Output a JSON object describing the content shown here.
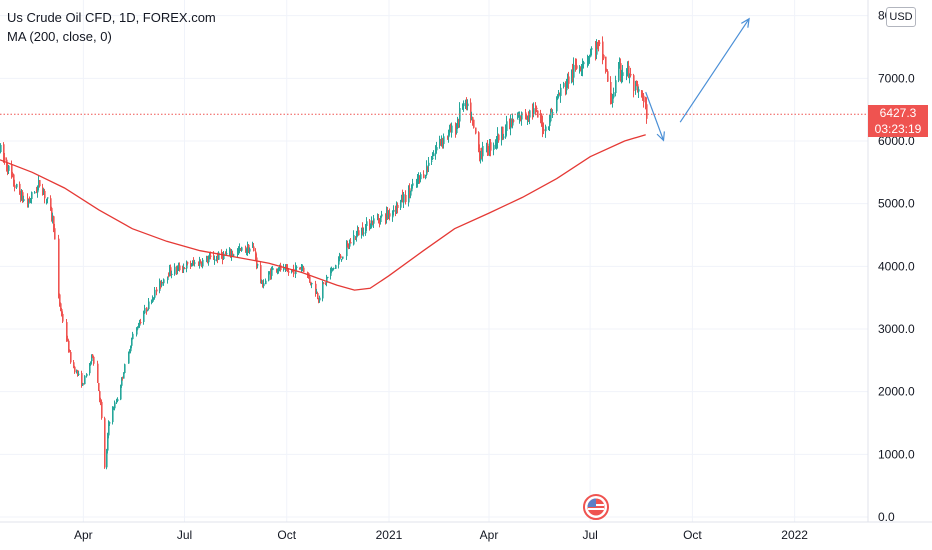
{
  "legend": {
    "symbol": "Us Crude Oil CFD, 1D, FOREX.com",
    "indicator": "MA (200, close, 0)"
  },
  "currency": "USD",
  "last_price": {
    "value": "6427.3",
    "countdown": "03:23:19"
  },
  "colors": {
    "up": "#26a69a",
    "down": "#ef5350",
    "ma": "#e53935",
    "arrow": "#4a8fd6",
    "grid": "#f0f3fa",
    "axis_text": "#131722"
  },
  "chart_data": {
    "type": "candlestick",
    "title": "Us Crude Oil CFD, 1D, FOREX.com",
    "ylim": [
      0,
      8250
    ],
    "y_ticks": [
      0,
      1000,
      2000,
      3000,
      4000,
      5000,
      6000,
      7000,
      8000
    ],
    "y_tick_labels": [
      "0.0",
      "1000.0",
      "2000.0",
      "3000.0",
      "4000.0",
      "5000.0",
      "6000.0",
      "7000.0",
      "8000.0"
    ],
    "x_range": [
      "2020-01-17",
      "2022-03-08"
    ],
    "x_ticks": [
      {
        "date": "2020-04-01",
        "label": "Apr"
      },
      {
        "date": "2020-07-01",
        "label": "Jul"
      },
      {
        "date": "2020-10-01",
        "label": "Oct"
      },
      {
        "date": "2021-01-01",
        "label": "2021"
      },
      {
        "date": "2021-04-01",
        "label": "Apr"
      },
      {
        "date": "2021-07-01",
        "label": "Jul"
      },
      {
        "date": "2021-10-01",
        "label": "Oct"
      },
      {
        "date": "2022-01-01",
        "label": "2022"
      }
    ],
    "price_path": [
      [
        "2020-01-17",
        5850
      ],
      [
        "2020-02-01",
        5200
      ],
      [
        "2020-02-10",
        5000
      ],
      [
        "2020-02-22",
        5350
      ],
      [
        "2020-03-05",
        4700
      ],
      [
        "2020-03-09",
        3500
      ],
      [
        "2020-03-20",
        2500
      ],
      [
        "2020-03-31",
        2100
      ],
      [
        "2020-04-09",
        2600
      ],
      [
        "2020-04-16",
        1800
      ],
      [
        "2020-04-20",
        800
      ],
      [
        "2020-04-23",
        1500
      ],
      [
        "2020-05-01",
        1900
      ],
      [
        "2020-05-15",
        2900
      ],
      [
        "2020-06-01",
        3500
      ],
      [
        "2020-06-15",
        3900
      ],
      [
        "2020-07-01",
        4000
      ],
      [
        "2020-07-20",
        4100
      ],
      [
        "2020-08-10",
        4200
      ],
      [
        "2020-08-31",
        4300
      ],
      [
        "2020-09-08",
        3700
      ],
      [
        "2020-09-20",
        4000
      ],
      [
        "2020-10-01",
        3900
      ],
      [
        "2020-10-15",
        4000
      ],
      [
        "2020-10-29",
        3500
      ],
      [
        "2020-11-05",
        3800
      ],
      [
        "2020-11-20",
        4200
      ],
      [
        "2020-12-01",
        4500
      ],
      [
        "2020-12-15",
        4700
      ],
      [
        "2021-01-01",
        4850
      ],
      [
        "2021-01-20",
        5200
      ],
      [
        "2021-02-01",
        5500
      ],
      [
        "2021-02-15",
        6000
      ],
      [
        "2021-03-01",
        6200
      ],
      [
        "2021-03-08",
        6600
      ],
      [
        "2021-03-15",
        6400
      ],
      [
        "2021-03-23",
        5800
      ],
      [
        "2021-04-01",
        5900
      ],
      [
        "2021-04-15",
        6200
      ],
      [
        "2021-05-01",
        6400
      ],
      [
        "2021-05-10",
        6500
      ],
      [
        "2021-05-21",
        6200
      ],
      [
        "2021-06-01",
        6700
      ],
      [
        "2021-06-15",
        7100
      ],
      [
        "2021-06-25",
        7300
      ],
      [
        "2021-07-06",
        7500
      ],
      [
        "2021-07-12",
        7400
      ],
      [
        "2021-07-19",
        6600
      ],
      [
        "2021-07-26",
        7100
      ],
      [
        "2021-08-02",
        7150
      ],
      [
        "2021-08-10",
        6800
      ],
      [
        "2021-08-16",
        6700
      ],
      [
        "2021-08-20",
        6450
      ]
    ],
    "ma_200": [
      [
        "2020-01-17",
        5700
      ],
      [
        "2020-02-15",
        5500
      ],
      [
        "2020-03-15",
        5250
      ],
      [
        "2020-04-15",
        4900
      ],
      [
        "2020-05-15",
        4600
      ],
      [
        "2020-06-15",
        4400
      ],
      [
        "2020-07-15",
        4250
      ],
      [
        "2020-08-15",
        4150
      ],
      [
        "2020-09-15",
        4050
      ],
      [
        "2020-10-15",
        3900
      ],
      [
        "2020-11-15",
        3700
      ],
      [
        "2020-12-01",
        3620
      ],
      [
        "2020-12-15",
        3650
      ],
      [
        "2021-01-01",
        3850
      ],
      [
        "2021-02-01",
        4250
      ],
      [
        "2021-03-01",
        4600
      ],
      [
        "2021-04-01",
        4850
      ],
      [
        "2021-05-01",
        5100
      ],
      [
        "2021-06-01",
        5400
      ],
      [
        "2021-07-01",
        5750
      ],
      [
        "2021-08-01",
        6000
      ],
      [
        "2021-08-20",
        6100
      ]
    ],
    "current_price": 6427.3,
    "annotations": [
      {
        "type": "arrow",
        "from": [
          "2021-08-20",
          6780
        ],
        "to": [
          "2021-09-05",
          6010
        ]
      },
      {
        "type": "arrow",
        "from": [
          "2021-09-20",
          6300
        ],
        "to": [
          "2021-11-21",
          7950
        ]
      }
    ]
  }
}
